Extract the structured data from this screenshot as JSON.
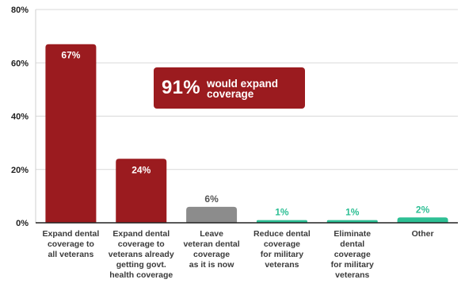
{
  "chart_data": {
    "type": "bar",
    "categories": [
      "Expand dental coverage to all veterans",
      "Expand dental coverage to veterans already getting govt. health coverage",
      "Leave veteran dental coverage as it is now",
      "Reduce dental coverage for military veterans",
      "Eliminate dental coverage for military veterans",
      "Other"
    ],
    "category_lines": [
      [
        "Expand dental",
        "coverage to",
        "all veterans"
      ],
      [
        "Expand dental",
        "coverage to",
        "veterans already",
        "getting govt.",
        "health coverage"
      ],
      [
        "Leave",
        "veteran dental",
        "coverage",
        "as it is now"
      ],
      [
        "Reduce dental",
        "coverage",
        "for military",
        "veterans"
      ],
      [
        "Eliminate",
        "dental",
        "coverage",
        "for military",
        "veterans"
      ],
      [
        "Other"
      ]
    ],
    "values": [
      67,
      24,
      6,
      1,
      1,
      2
    ],
    "data_labels": [
      "67%",
      "24%",
      "6%",
      "1%",
      "1%",
      "2%"
    ],
    "ylim": [
      0,
      80
    ],
    "y_ticks": [
      0,
      20,
      40,
      60,
      80
    ],
    "y_tick_labels": [
      "0%",
      "20%",
      "40%",
      "60%",
      "80%"
    ],
    "grid": true,
    "bar_colors": [
      "#9b1b1f",
      "#9b1b1f",
      "#8c8c8c",
      "#2dbf94",
      "#2dbf94",
      "#2dbf94"
    ],
    "label_colors": [
      "#ffffff",
      "#ffffff",
      "#555555",
      "#2dbf94",
      "#2dbf94",
      "#2dbf94"
    ],
    "annotation": {
      "value": "91%",
      "text_lines": [
        "would expand",
        "coverage"
      ],
      "color": "#9b1b1f"
    }
  }
}
